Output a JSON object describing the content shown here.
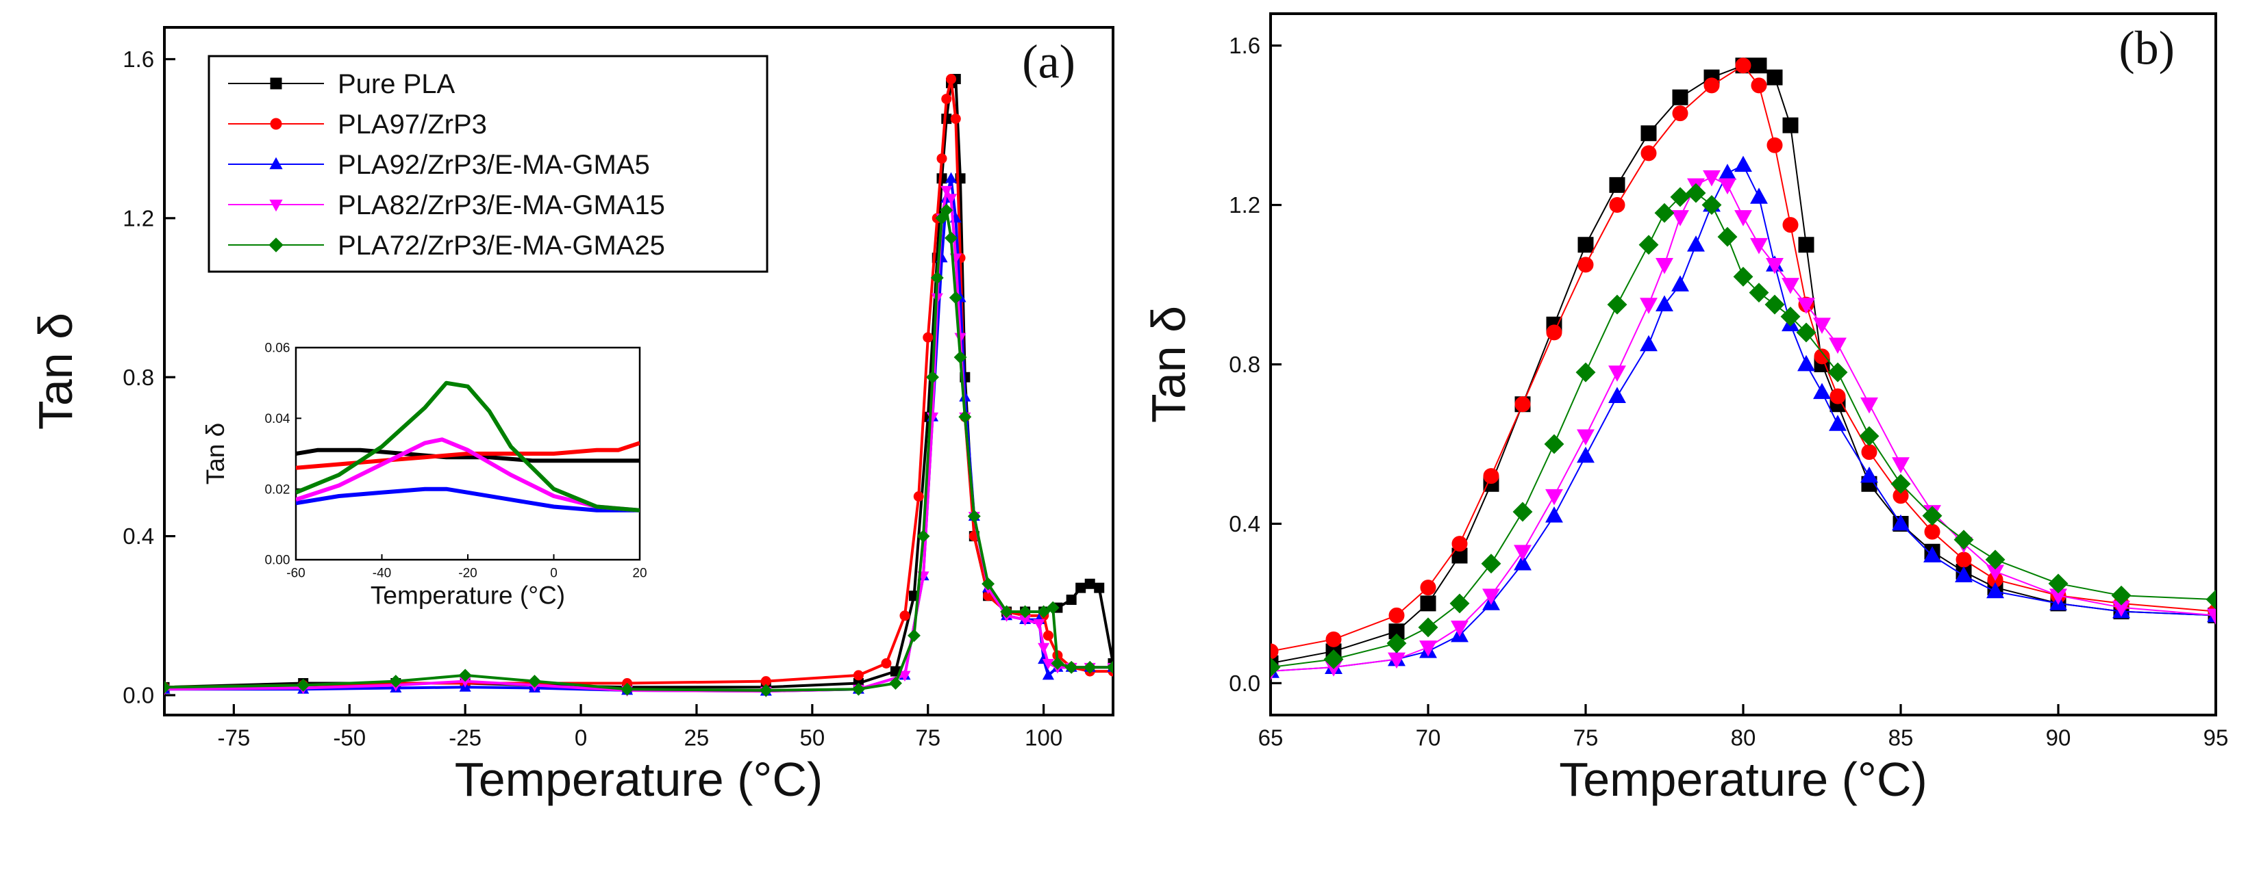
{
  "colors": {
    "pure_pla": "#000000",
    "pla97": "#ff0000",
    "pla92": "#0000ff",
    "pla82": "#ff00ff",
    "pla72": "#008000"
  },
  "chart_data": [
    {
      "id": "a",
      "type": "line",
      "panel_label": "(a)",
      "xlabel": "Temperature (°C)",
      "ylabel": "Tan δ",
      "xlim": [
        -90,
        115
      ],
      "ylim": [
        -0.05,
        1.68
      ],
      "xticks": [
        -75,
        -50,
        -25,
        0,
        25,
        50,
        75,
        100
      ],
      "xtick_labels": [
        "-75",
        "-50",
        "-25",
        "0",
        "25",
        "50",
        "75",
        "100"
      ],
      "yticks": [
        0.0,
        0.4,
        0.8,
        1.2,
        1.6
      ],
      "ytick_labels": [
        "0.0",
        "0.4",
        "0.8",
        "1.2",
        "1.6"
      ],
      "legend_position": "top-left",
      "series": [
        {
          "name": "Pure PLA",
          "color_key": "pure_pla",
          "marker": "square",
          "x": [
            -90,
            -60,
            -40,
            -25,
            -10,
            10,
            40,
            60,
            68,
            72,
            75,
            77,
            78,
            79,
            80,
            81,
            82,
            83,
            85,
            88,
            92,
            96,
            100,
            103,
            106,
            108,
            110,
            112,
            115
          ],
          "y": [
            0.02,
            0.03,
            0.03,
            0.03,
            0.025,
            0.02,
            0.02,
            0.03,
            0.06,
            0.25,
            0.7,
            1.1,
            1.3,
            1.45,
            1.54,
            1.55,
            1.3,
            0.8,
            0.4,
            0.25,
            0.21,
            0.21,
            0.21,
            0.22,
            0.24,
            0.27,
            0.28,
            0.27,
            0.08
          ]
        },
        {
          "name": "PLA97/ZrP3",
          "color_key": "pla97",
          "marker": "circle",
          "x": [
            -90,
            -60,
            -40,
            -25,
            -10,
            10,
            40,
            60,
            66,
            70,
            73,
            75,
            77,
            78,
            79,
            80,
            81,
            82,
            83,
            85,
            88,
            92,
            96,
            100,
            101,
            103,
            106,
            110,
            115
          ],
          "y": [
            0.02,
            0.025,
            0.03,
            0.03,
            0.03,
            0.03,
            0.035,
            0.05,
            0.08,
            0.2,
            0.5,
            0.9,
            1.2,
            1.35,
            1.5,
            1.55,
            1.45,
            1.1,
            0.7,
            0.4,
            0.25,
            0.21,
            0.2,
            0.2,
            0.15,
            0.1,
            0.07,
            0.06,
            0.06
          ]
        },
        {
          "name": "PLA92/ZrP3/E-MA-GMA5",
          "color_key": "pla92",
          "marker": "triangle-up",
          "x": [
            -90,
            -60,
            -40,
            -25,
            -10,
            10,
            40,
            60,
            70,
            74,
            76,
            78,
            79,
            80,
            81,
            82,
            83,
            85,
            88,
            92,
            96,
            99,
            100,
            101,
            103,
            106,
            110,
            115
          ],
          "y": [
            0.015,
            0.015,
            0.018,
            0.02,
            0.018,
            0.012,
            0.01,
            0.015,
            0.05,
            0.3,
            0.7,
            1.1,
            1.25,
            1.3,
            1.2,
            1.0,
            0.75,
            0.45,
            0.27,
            0.2,
            0.19,
            0.19,
            0.09,
            0.05,
            0.07,
            0.07,
            0.07,
            0.07
          ]
        },
        {
          "name": "PLA82/ZrP3/E-MA-GMA15",
          "color_key": "pla82",
          "marker": "triangle-down",
          "x": [
            -90,
            -60,
            -40,
            -25,
            -10,
            10,
            40,
            60,
            70,
            74,
            76,
            77,
            78,
            79,
            80,
            81,
            82,
            83,
            85,
            88,
            92,
            96,
            99,
            100,
            101,
            103,
            106,
            110,
            115
          ],
          "y": [
            0.015,
            0.018,
            0.025,
            0.035,
            0.025,
            0.012,
            0.01,
            0.015,
            0.05,
            0.3,
            0.7,
            1.0,
            1.2,
            1.27,
            1.25,
            1.1,
            0.9,
            0.7,
            0.45,
            0.27,
            0.2,
            0.19,
            0.18,
            0.12,
            0.08,
            0.07,
            0.07,
            0.07,
            0.07
          ]
        },
        {
          "name": "PLA72/ZrP3/E-MA-GMA25",
          "color_key": "pla72",
          "marker": "diamond",
          "x": [
            -90,
            -60,
            -40,
            -25,
            -10,
            10,
            40,
            60,
            68,
            72,
            74,
            76,
            77,
            78,
            79,
            80,
            81,
            82,
            83,
            85,
            88,
            92,
            96,
            100,
            102,
            103,
            106,
            110,
            115
          ],
          "y": [
            0.02,
            0.025,
            0.035,
            0.05,
            0.035,
            0.015,
            0.012,
            0.015,
            0.03,
            0.15,
            0.4,
            0.8,
            1.05,
            1.2,
            1.22,
            1.15,
            1.0,
            0.85,
            0.7,
            0.45,
            0.28,
            0.21,
            0.21,
            0.21,
            0.22,
            0.08,
            0.07,
            0.07,
            0.07
          ]
        }
      ]
    },
    {
      "id": "a-inset",
      "type": "line",
      "xlabel": "Temperature (°C)",
      "ylabel": "Tan δ",
      "xlim": [
        -60,
        20
      ],
      "ylim": [
        0.0,
        0.06
      ],
      "xticks": [
        -60,
        -40,
        -20,
        0,
        20
      ],
      "xtick_labels": [
        "-60",
        "-40",
        "-20",
        "0",
        "20"
      ],
      "yticks": [
        0.0,
        0.02,
        0.04,
        0.06
      ],
      "ytick_labels": [
        "0.00",
        "0.02",
        "0.04",
        "0.06"
      ],
      "series": [
        {
          "name": "Pure PLA",
          "color_key": "pure_pla",
          "x": [
            -60,
            -55,
            -45,
            -35,
            -25,
            -15,
            -5,
            5,
            15,
            20
          ],
          "y": [
            0.03,
            0.031,
            0.031,
            0.03,
            0.029,
            0.029,
            0.028,
            0.028,
            0.028,
            0.028
          ]
        },
        {
          "name": "PLA97/ZrP3",
          "color_key": "pla97",
          "x": [
            -60,
            -50,
            -40,
            -30,
            -20,
            -10,
            0,
            10,
            15,
            20
          ],
          "y": [
            0.026,
            0.027,
            0.028,
            0.029,
            0.03,
            0.03,
            0.03,
            0.031,
            0.031,
            0.033
          ]
        },
        {
          "name": "PLA92/ZrP3/E-MA-GMA5",
          "color_key": "pla92",
          "x": [
            -60,
            -50,
            -40,
            -30,
            -25,
            -20,
            -10,
            0,
            10,
            20
          ],
          "y": [
            0.016,
            0.018,
            0.019,
            0.02,
            0.02,
            0.019,
            0.017,
            0.015,
            0.014,
            0.014
          ]
        },
        {
          "name": "PLA82/ZrP3/E-MA-GMA15",
          "color_key": "pla82",
          "x": [
            -60,
            -50,
            -40,
            -30,
            -26,
            -20,
            -10,
            0,
            10,
            20
          ],
          "y": [
            0.017,
            0.021,
            0.027,
            0.033,
            0.034,
            0.031,
            0.024,
            0.018,
            0.015,
            0.014
          ]
        },
        {
          "name": "PLA72/ZrP3/E-MA-GMA25",
          "color_key": "pla72",
          "x": [
            -60,
            -50,
            -40,
            -30,
            -25,
            -20,
            -15,
            -10,
            0,
            10,
            20
          ],
          "y": [
            0.019,
            0.024,
            0.032,
            0.043,
            0.05,
            0.049,
            0.042,
            0.032,
            0.02,
            0.015,
            0.014
          ]
        }
      ]
    },
    {
      "id": "b",
      "type": "scatter",
      "panel_label": "(b)",
      "xlabel": "Temperature (°C)",
      "ylabel": "Tan δ",
      "xlim": [
        65,
        95
      ],
      "ylim": [
        -0.08,
        1.68
      ],
      "xticks": [
        65,
        70,
        75,
        80,
        85,
        90,
        95
      ],
      "xtick_labels": [
        "65",
        "70",
        "75",
        "80",
        "85",
        "90",
        "95"
      ],
      "yticks": [
        0.0,
        0.4,
        0.8,
        1.2,
        1.6
      ],
      "ytick_labels": [
        "0.0",
        "0.4",
        "0.8",
        "1.2",
        "1.6"
      ],
      "series": [
        {
          "name": "Pure PLA",
          "color_key": "pure_pla",
          "marker": "square",
          "x": [
            65,
            67,
            69,
            70,
            71,
            72,
            73,
            74,
            75,
            76,
            77,
            78,
            79,
            80,
            80.5,
            81,
            81.5,
            82,
            82.5,
            83,
            84,
            85,
            86,
            87,
            88,
            90,
            92,
            95
          ],
          "y": [
            0.05,
            0.08,
            0.13,
            0.2,
            0.32,
            0.5,
            0.7,
            0.9,
            1.1,
            1.25,
            1.38,
            1.47,
            1.52,
            1.55,
            1.55,
            1.52,
            1.4,
            1.1,
            0.8,
            0.7,
            0.5,
            0.4,
            0.33,
            0.28,
            0.24,
            0.2,
            0.18,
            0.17
          ]
        },
        {
          "name": "PLA97/ZrP3",
          "color_key": "pla97",
          "marker": "circle",
          "x": [
            65,
            67,
            69,
            70,
            71,
            72,
            73,
            74,
            75,
            76,
            77,
            78,
            79,
            80,
            80.5,
            81,
            81.5,
            82,
            82.5,
            83,
            84,
            85,
            86,
            87,
            88,
            90,
            92,
            95
          ],
          "y": [
            0.08,
            0.11,
            0.17,
            0.24,
            0.35,
            0.52,
            0.7,
            0.88,
            1.05,
            1.2,
            1.33,
            1.43,
            1.5,
            1.55,
            1.5,
            1.35,
            1.15,
            0.95,
            0.82,
            0.72,
            0.58,
            0.47,
            0.38,
            0.31,
            0.26,
            0.22,
            0.2,
            0.18
          ]
        },
        {
          "name": "PLA92/ZrP3/E-MA-GMA5",
          "color_key": "pla92",
          "marker": "triangle-up",
          "x": [
            65,
            67,
            69,
            70,
            71,
            72,
            73,
            74,
            75,
            76,
            77,
            77.5,
            78,
            78.5,
            79,
            79.5,
            80,
            80.5,
            81,
            81.5,
            82,
            82.5,
            83,
            84,
            85,
            86,
            87,
            88,
            90,
            92,
            95
          ],
          "y": [
            0.03,
            0.04,
            0.06,
            0.08,
            0.12,
            0.2,
            0.3,
            0.42,
            0.57,
            0.72,
            0.85,
            0.95,
            1.0,
            1.1,
            1.2,
            1.28,
            1.3,
            1.22,
            1.05,
            0.9,
            0.8,
            0.73,
            0.65,
            0.52,
            0.4,
            0.32,
            0.27,
            0.23,
            0.2,
            0.18,
            0.17
          ]
        },
        {
          "name": "PLA82/ZrP3/E-MA-GMA15",
          "color_key": "pla82",
          "marker": "triangle-down",
          "x": [
            65,
            67,
            69,
            70,
            71,
            72,
            73,
            74,
            75,
            76,
            77,
            77.5,
            78,
            78.5,
            79,
            79.5,
            80,
            80.5,
            81,
            81.5,
            82,
            82.5,
            83,
            84,
            85,
            86,
            87,
            88,
            90,
            92,
            95
          ],
          "y": [
            0.03,
            0.04,
            0.06,
            0.09,
            0.14,
            0.22,
            0.33,
            0.47,
            0.62,
            0.78,
            0.95,
            1.05,
            1.17,
            1.25,
            1.27,
            1.25,
            1.17,
            1.1,
            1.05,
            1.0,
            0.95,
            0.9,
            0.85,
            0.7,
            0.55,
            0.43,
            0.35,
            0.28,
            0.22,
            0.19,
            0.17
          ]
        },
        {
          "name": "PLA72/ZrP3/E-MA-GMA25",
          "color_key": "pla72",
          "marker": "diamond",
          "x": [
            65,
            67,
            69,
            70,
            71,
            72,
            73,
            74,
            75,
            76,
            77,
            77.5,
            78,
            78.5,
            79,
            79.5,
            80,
            80.5,
            81,
            81.5,
            82,
            83,
            84,
            85,
            86,
            87,
            88,
            90,
            92,
            95
          ],
          "y": [
            0.04,
            0.06,
            0.1,
            0.14,
            0.2,
            0.3,
            0.43,
            0.6,
            0.78,
            0.95,
            1.1,
            1.18,
            1.22,
            1.23,
            1.2,
            1.12,
            1.02,
            0.98,
            0.95,
            0.92,
            0.88,
            0.78,
            0.62,
            0.5,
            0.42,
            0.36,
            0.31,
            0.25,
            0.22,
            0.21
          ]
        }
      ]
    }
  ]
}
